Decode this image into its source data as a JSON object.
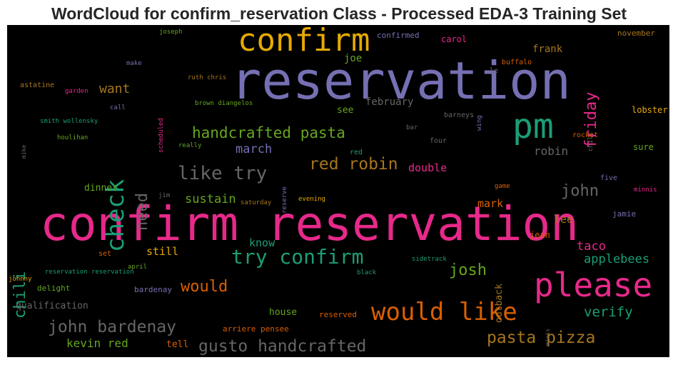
{
  "title": "WordCloud for confirm_reservation Class - Processed EDA-3 Training Set",
  "words": [
    {
      "text": "reservation",
      "color": "#7570b3"
    },
    {
      "text": "confirm reservation",
      "color": "#e7298a"
    },
    {
      "text": "confirm",
      "color": "#e6ab02"
    },
    {
      "text": "pm",
      "color": "#1b9e77"
    },
    {
      "text": "please",
      "color": "#e7298a"
    },
    {
      "text": "would like",
      "color": "#d95f02"
    },
    {
      "text": "check",
      "color": "#1b9e77"
    },
    {
      "text": "handcrafted pasta",
      "color": "#66a61e"
    },
    {
      "text": "try confirm",
      "color": "#1b9e77"
    },
    {
      "text": "like try",
      "color": "#666666"
    },
    {
      "text": "red robin",
      "color": "#a6761d"
    },
    {
      "text": "john bardenay",
      "color": "#666666"
    },
    {
      "text": "gusto handcrafted",
      "color": "#666666"
    },
    {
      "text": "pasta pizza",
      "color": "#a6761d"
    },
    {
      "text": "friday",
      "color": "#e7298a"
    },
    {
      "text": "chili",
      "color": "#1b9e77"
    },
    {
      "text": "need",
      "color": "#666666"
    },
    {
      "text": "john",
      "color": "#666666"
    },
    {
      "text": "josh",
      "color": "#66a61e"
    },
    {
      "text": "would",
      "color": "#d95f02"
    },
    {
      "text": "verify",
      "color": "#1b9e77"
    },
    {
      "text": "want",
      "color": "#a6761d"
    },
    {
      "text": "march",
      "color": "#7570b3"
    },
    {
      "text": "sustain",
      "color": "#66a61e"
    },
    {
      "text": "taco",
      "color": "#e7298a"
    },
    {
      "text": "applebees",
      "color": "#1b9e77"
    },
    {
      "text": "robin",
      "color": "#666666"
    },
    {
      "text": "double",
      "color": "#e7298a"
    },
    {
      "text": "mark",
      "color": "#d95f02"
    },
    {
      "text": "know",
      "color": "#1b9e77"
    },
    {
      "text": "still",
      "color": "#e6ab02"
    },
    {
      "text": "kevin red",
      "color": "#66a61e"
    },
    {
      "text": "lee",
      "color": "#a6761d"
    },
    {
      "text": "outback",
      "color": "#a6761d"
    },
    {
      "text": "frank",
      "color": "#a6761d"
    },
    {
      "text": "joe",
      "color": "#66a61e"
    },
    {
      "text": "february",
      "color": "#666666"
    },
    {
      "text": "see",
      "color": "#66a61e"
    },
    {
      "text": "carol",
      "color": "#e7298a"
    },
    {
      "text": "confirmed",
      "color": "#7570b3"
    },
    {
      "text": "november",
      "color": "#a6761d"
    },
    {
      "text": "buffalo",
      "color": "#d95f02"
    },
    {
      "text": "le",
      "color": "#666666"
    },
    {
      "text": "lobster",
      "color": "#e6ab02"
    },
    {
      "text": "rocket",
      "color": "#d95f02"
    },
    {
      "text": "sure",
      "color": "#66a61e"
    },
    {
      "text": "chili",
      "color": "#666666"
    },
    {
      "text": "wing",
      "color": "#7570b3"
    },
    {
      "text": "barneys",
      "color": "#666666"
    },
    {
      "text": "bar",
      "color": "#666666"
    },
    {
      "text": "four",
      "color": "#666666"
    },
    {
      "text": "red",
      "color": "#1b9e77"
    },
    {
      "text": "reserve",
      "color": "#7570b3"
    },
    {
      "text": "evening",
      "color": "#e6ab02"
    },
    {
      "text": "saturday",
      "color": "#a6761d"
    },
    {
      "text": "jim",
      "color": "#666666"
    },
    {
      "text": "dinner",
      "color": "#66a61e"
    },
    {
      "text": "five",
      "color": "#7570b3"
    },
    {
      "text": "minnis",
      "color": "#e7298a"
    },
    {
      "text": "game",
      "color": "#d95f02"
    },
    {
      "text": "jamie",
      "color": "#7570b3"
    },
    {
      "text": "jean",
      "color": "#d95f02"
    },
    {
      "text": "sidetrack",
      "color": "#1b9e77"
    },
    {
      "text": "black",
      "color": "#1b9e77"
    },
    {
      "text": "house",
      "color": "#66a61e"
    },
    {
      "text": "reserved",
      "color": "#d95f02"
    },
    {
      "text": "arriere pensee",
      "color": "#d95f02"
    },
    {
      "text": "tell",
      "color": "#d95f02"
    },
    {
      "text": "qualification",
      "color": "#666666"
    },
    {
      "text": "delight",
      "color": "#66a61e"
    },
    {
      "text": "bardenay",
      "color": "#7570b3"
    },
    {
      "text": "reservation reservation",
      "color": "#1b9e77"
    },
    {
      "text": "april",
      "color": "#66a61e"
    },
    {
      "text": "set",
      "color": "#d95f02"
    },
    {
      "text": "johnny",
      "color": "#e6ab02"
    },
    {
      "text": "minis",
      "color": "#666666"
    },
    {
      "text": "joseph",
      "color": "#66a61e"
    },
    {
      "text": "make",
      "color": "#7570b3"
    },
    {
      "text": "ruth chris",
      "color": "#a6761d"
    },
    {
      "text": "astatine",
      "color": "#a6761d"
    },
    {
      "text": "garden",
      "color": "#e7298a"
    },
    {
      "text": "call",
      "color": "#7570b3"
    },
    {
      "text": "scheduled",
      "color": "#e7298a"
    },
    {
      "text": "brown diangelos",
      "color": "#66a61e"
    },
    {
      "text": "smith wollensky",
      "color": "#1b9e77"
    },
    {
      "text": "houlihan",
      "color": "#66a61e"
    },
    {
      "text": "mike",
      "color": "#666666"
    },
    {
      "text": "really",
      "color": "#66a61e"
    }
  ]
}
